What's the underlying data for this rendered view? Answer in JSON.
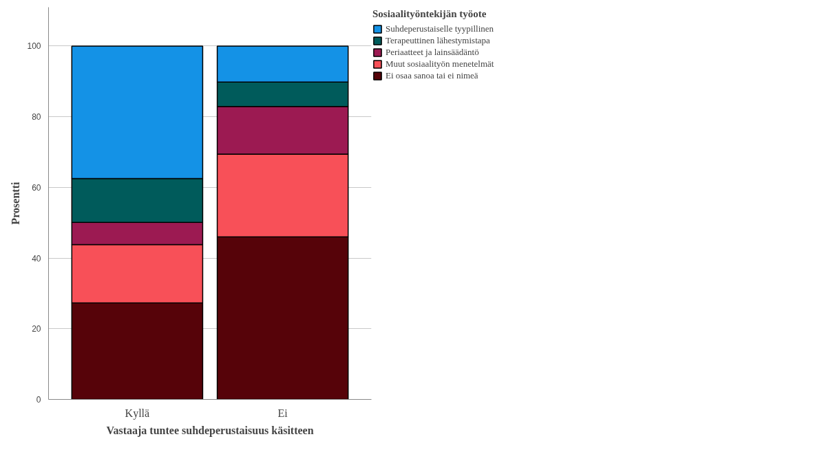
{
  "chart_data": {
    "type": "bar",
    "stacked": true,
    "xlabel": "Vastaaja tuntee suhdeperustaisuus käsitteen",
    "ylabel": "Prosentti",
    "legend_title": "Sosiaalityöntekijän työote",
    "categories": [
      "Kyllä",
      "Ei"
    ],
    "series": [
      {
        "name": "Ei osaa sanoa tai ei nimeä",
        "color": "#560309",
        "values": [
          27.3,
          46.0
        ]
      },
      {
        "name": "Muut sosiaalityön menetelmät",
        "color": "#f85058",
        "values": [
          16.5,
          23.4
        ]
      },
      {
        "name": "Periaatteet ja lainsäädäntö",
        "color": "#9c1a52",
        "values": [
          6.3,
          13.5
        ]
      },
      {
        "name": "Terapeuttinen lähestymistapa",
        "color": "#005b5b",
        "values": [
          12.4,
          6.9
        ]
      },
      {
        "name": "Suhdeperustaiselle tyypillinen",
        "color": "#1492e6",
        "values": [
          37.5,
          10.2
        ]
      }
    ],
    "ylim": [
      0,
      111
    ],
    "yticks": [
      0,
      20,
      40,
      60,
      80,
      100
    ],
    "grid": "y",
    "legend": "top right"
  }
}
